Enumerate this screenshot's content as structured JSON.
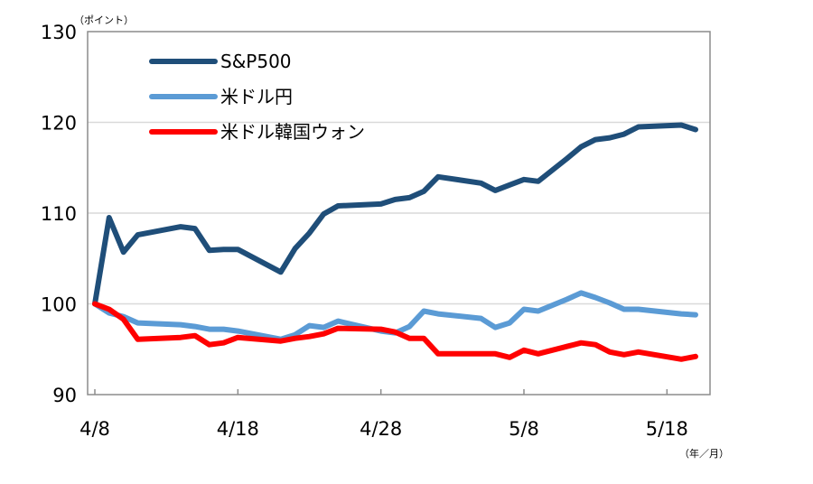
{
  "chart_data": {
    "type": "line",
    "y_unit": "（ポイント）",
    "x_unit": "（年／月）",
    "ylim": [
      90,
      130
    ],
    "yticks": [
      90,
      100,
      110,
      120,
      130
    ],
    "xlim": [
      0,
      42
    ],
    "xticks": [
      {
        "pos": 0,
        "label": "4/8"
      },
      {
        "pos": 10,
        "label": "4/18"
      },
      {
        "pos": 20,
        "label": "4/28"
      },
      {
        "pos": 30,
        "label": "5/8"
      },
      {
        "pos": 40,
        "label": "5/18"
      }
    ],
    "grid": true,
    "legend_position": "top-left",
    "series": [
      {
        "name": "S&P500",
        "color": "#1f4e79",
        "points": [
          [
            0,
            100
          ],
          [
            1,
            109.5
          ],
          [
            2,
            105.7
          ],
          [
            3,
            107.6
          ],
          [
            6,
            108.5
          ],
          [
            7,
            108.3
          ],
          [
            8,
            105.9
          ],
          [
            9,
            106
          ],
          [
            10,
            106
          ],
          [
            13,
            103.5
          ],
          [
            14,
            106.1
          ],
          [
            15,
            107.8
          ],
          [
            16,
            109.9
          ],
          [
            17,
            110.8
          ],
          [
            20,
            111
          ],
          [
            21,
            111.5
          ],
          [
            22,
            111.7
          ],
          [
            23,
            112.4
          ],
          [
            24,
            114
          ],
          [
            27,
            113.3
          ],
          [
            28,
            112.5
          ],
          [
            29,
            113.1
          ],
          [
            30,
            113.7
          ],
          [
            31,
            113.5
          ],
          [
            33,
            116
          ],
          [
            34,
            117.3
          ],
          [
            35,
            118.1
          ],
          [
            36,
            118.3
          ],
          [
            37,
            118.7
          ],
          [
            38,
            119.5
          ],
          [
            41,
            119.7
          ],
          [
            42,
            119.2
          ]
        ]
      },
      {
        "name": "米ドル円",
        "color": "#5b9bd5",
        "points": [
          [
            0,
            100
          ],
          [
            1,
            99
          ],
          [
            2,
            98.6
          ],
          [
            3,
            97.9
          ],
          [
            6,
            97.7
          ],
          [
            7,
            97.5
          ],
          [
            8,
            97.2
          ],
          [
            9,
            97.2
          ],
          [
            10,
            97
          ],
          [
            13,
            96.1
          ],
          [
            14,
            96.6
          ],
          [
            15,
            97.6
          ],
          [
            16,
            97.4
          ],
          [
            17,
            98.1
          ],
          [
            20,
            97
          ],
          [
            21,
            96.8
          ],
          [
            22,
            97.5
          ],
          [
            23,
            99.2
          ],
          [
            24,
            98.9
          ],
          [
            27,
            98.4
          ],
          [
            28,
            97.4
          ],
          [
            29,
            97.9
          ],
          [
            30,
            99.4
          ],
          [
            31,
            99.2
          ],
          [
            33,
            100.5
          ],
          [
            34,
            101.2
          ],
          [
            35,
            100.7
          ],
          [
            36,
            100.1
          ],
          [
            37,
            99.4
          ],
          [
            38,
            99.4
          ],
          [
            41,
            98.9
          ],
          [
            42,
            98.8
          ]
        ]
      },
      {
        "name": "米ドル韓国ウォン",
        "color": "#ff0000",
        "points": [
          [
            0,
            100
          ],
          [
            1,
            99.4
          ],
          [
            2,
            98.3
          ],
          [
            3,
            96.1
          ],
          [
            6,
            96.3
          ],
          [
            7,
            96.5
          ],
          [
            8,
            95.5
          ],
          [
            9,
            95.7
          ],
          [
            10,
            96.3
          ],
          [
            13,
            95.9
          ],
          [
            14,
            96.2
          ],
          [
            15,
            96.4
          ],
          [
            16,
            96.7
          ],
          [
            17,
            97.3
          ],
          [
            20,
            97.2
          ],
          [
            21,
            96.9
          ],
          [
            22,
            96.2
          ],
          [
            23,
            96.2
          ],
          [
            24,
            94.5
          ],
          [
            27,
            94.5
          ],
          [
            28,
            94.5
          ],
          [
            29,
            94.1
          ],
          [
            30,
            94.9
          ],
          [
            31,
            94.5
          ],
          [
            33,
            95.3
          ],
          [
            34,
            95.7
          ],
          [
            35,
            95.5
          ],
          [
            36,
            94.7
          ],
          [
            37,
            94.4
          ],
          [
            38,
            94.7
          ],
          [
            41,
            93.9
          ],
          [
            42,
            94.2
          ]
        ]
      }
    ]
  }
}
